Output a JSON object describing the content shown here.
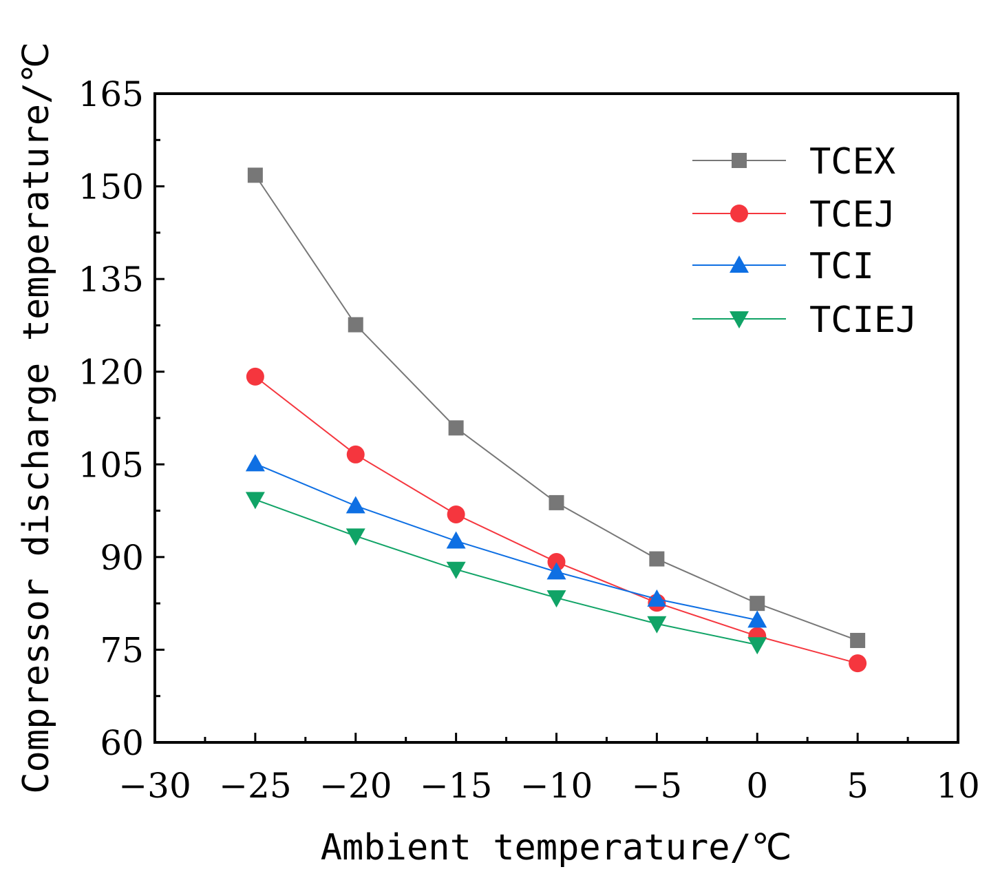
{
  "chart_data": {
    "type": "line",
    "xlabel": "Ambient temperature/℃",
    "ylabel": "Compressor discharge temperature/℃",
    "xlim": [
      -30,
      10
    ],
    "ylim": [
      60,
      165
    ],
    "xticks": [
      -30,
      -25,
      -20,
      -15,
      -10,
      -5,
      0,
      5,
      10
    ],
    "yticks": [
      60,
      75,
      90,
      105,
      120,
      135,
      150,
      165
    ],
    "xtick_labels": [
      "−30",
      "−25",
      "−20",
      "−15",
      "−10",
      "−5",
      "0",
      "5",
      "10"
    ],
    "ytick_labels": [
      "60",
      "75",
      "90",
      "105",
      "120",
      "135",
      "150",
      "165"
    ],
    "grid": false,
    "legend_position": "top-right",
    "series": [
      {
        "name": "TCEX",
        "color": "#777777",
        "marker": "square",
        "x": [
          -25,
          -20,
          -15,
          -10,
          -5,
          0,
          5
        ],
        "values": [
          151.8,
          127.6,
          110.9,
          98.8,
          89.7,
          82.5,
          76.5
        ]
      },
      {
        "name": "TCEJ",
        "color": "#f5363e",
        "marker": "circle",
        "x": [
          -25,
          -20,
          -15,
          -10,
          -5,
          0,
          5
        ],
        "values": [
          119.2,
          106.6,
          96.9,
          89.2,
          82.6,
          77.2,
          72.8
        ]
      },
      {
        "name": "TCI",
        "color": "#0e6fe3",
        "marker": "triangle-up",
        "x": [
          -25,
          -20,
          -15,
          -10,
          -5,
          0
        ],
        "values": [
          105.1,
          98.3,
          92.6,
          87.6,
          83.2,
          79.8
        ]
      },
      {
        "name": "TCIEJ",
        "color": "#10a366",
        "marker": "triangle-down",
        "x": [
          -25,
          -20,
          -15,
          -10,
          -5,
          0
        ],
        "values": [
          99.3,
          93.4,
          88.0,
          83.4,
          79.2,
          75.8
        ]
      }
    ]
  }
}
